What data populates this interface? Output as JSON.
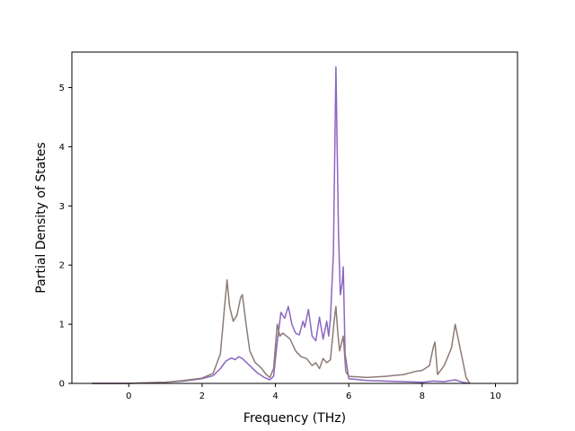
{
  "chart_data": {
    "type": "line",
    "title": "",
    "xlabel": "Frequency (THz)",
    "ylabel": "Partial Density of States",
    "xlim": [
      -1.55,
      10.6
    ],
    "ylim": [
      0,
      5.6
    ],
    "xticks": [
      0,
      2,
      4,
      6,
      8,
      10
    ],
    "yticks": [
      0,
      1,
      2,
      3,
      4,
      5
    ],
    "grid": false,
    "series": [
      {
        "color": "#8c67c0",
        "points": [
          [
            -1.0,
            0
          ],
          [
            0,
            0
          ],
          [
            0.5,
            0.01
          ],
          [
            1.0,
            0.02
          ],
          [
            1.5,
            0.04
          ],
          [
            2.0,
            0.08
          ],
          [
            2.3,
            0.13
          ],
          [
            2.5,
            0.25
          ],
          [
            2.65,
            0.38
          ],
          [
            2.8,
            0.43
          ],
          [
            2.9,
            0.4
          ],
          [
            3.0,
            0.45
          ],
          [
            3.1,
            0.42
          ],
          [
            3.3,
            0.3
          ],
          [
            3.5,
            0.18
          ],
          [
            3.7,
            0.1
          ],
          [
            3.85,
            0.06
          ],
          [
            3.95,
            0.12
          ],
          [
            4.05,
            0.7
          ],
          [
            4.15,
            1.2
          ],
          [
            4.25,
            1.1
          ],
          [
            4.35,
            1.3
          ],
          [
            4.45,
            1.0
          ],
          [
            4.55,
            0.85
          ],
          [
            4.65,
            0.82
          ],
          [
            4.75,
            1.05
          ],
          [
            4.8,
            0.95
          ],
          [
            4.9,
            1.25
          ],
          [
            5.0,
            0.8
          ],
          [
            5.1,
            0.72
          ],
          [
            5.2,
            1.12
          ],
          [
            5.3,
            0.75
          ],
          [
            5.4,
            1.05
          ],
          [
            5.45,
            0.8
          ],
          [
            5.5,
            1.1
          ],
          [
            5.58,
            2.2
          ],
          [
            5.65,
            5.35
          ],
          [
            5.72,
            2.5
          ],
          [
            5.77,
            1.5
          ],
          [
            5.82,
            1.7
          ],
          [
            5.85,
            1.97
          ],
          [
            5.9,
            0.5
          ],
          [
            6.0,
            0.08
          ],
          [
            6.5,
            0.05
          ],
          [
            7.0,
            0.04
          ],
          [
            7.5,
            0.03
          ],
          [
            8.0,
            0.02
          ],
          [
            8.3,
            0.04
          ],
          [
            8.6,
            0.03
          ],
          [
            8.9,
            0.06
          ],
          [
            9.1,
            0.02
          ],
          [
            9.3,
            0
          ]
        ]
      },
      {
        "color": "#8c7b76",
        "points": [
          [
            -1.0,
            0
          ],
          [
            0,
            0
          ],
          [
            0.5,
            0.01
          ],
          [
            1.0,
            0.02
          ],
          [
            1.5,
            0.05
          ],
          [
            2.0,
            0.09
          ],
          [
            2.3,
            0.17
          ],
          [
            2.5,
            0.5
          ],
          [
            2.6,
            1.2
          ],
          [
            2.68,
            1.75
          ],
          [
            2.75,
            1.3
          ],
          [
            2.85,
            1.05
          ],
          [
            2.95,
            1.15
          ],
          [
            3.05,
            1.45
          ],
          [
            3.1,
            1.5
          ],
          [
            3.2,
            1.0
          ],
          [
            3.3,
            0.55
          ],
          [
            3.45,
            0.35
          ],
          [
            3.6,
            0.27
          ],
          [
            3.75,
            0.15
          ],
          [
            3.85,
            0.1
          ],
          [
            3.95,
            0.25
          ],
          [
            4.05,
            1.0
          ],
          [
            4.12,
            0.8
          ],
          [
            4.2,
            0.85
          ],
          [
            4.3,
            0.8
          ],
          [
            4.4,
            0.75
          ],
          [
            4.55,
            0.55
          ],
          [
            4.7,
            0.45
          ],
          [
            4.85,
            0.42
          ],
          [
            5.0,
            0.3
          ],
          [
            5.1,
            0.35
          ],
          [
            5.2,
            0.25
          ],
          [
            5.3,
            0.42
          ],
          [
            5.4,
            0.35
          ],
          [
            5.5,
            0.4
          ],
          [
            5.6,
            1.05
          ],
          [
            5.65,
            1.3
          ],
          [
            5.7,
            0.85
          ],
          [
            5.75,
            0.55
          ],
          [
            5.85,
            0.8
          ],
          [
            5.92,
            0.2
          ],
          [
            6.0,
            0.12
          ],
          [
            6.5,
            0.1
          ],
          [
            7.0,
            0.12
          ],
          [
            7.5,
            0.15
          ],
          [
            7.8,
            0.2
          ],
          [
            8.0,
            0.22
          ],
          [
            8.2,
            0.3
          ],
          [
            8.3,
            0.6
          ],
          [
            8.35,
            0.7
          ],
          [
            8.42,
            0.15
          ],
          [
            8.6,
            0.3
          ],
          [
            8.8,
            0.6
          ],
          [
            8.9,
            1.0
          ],
          [
            9.0,
            0.7
          ],
          [
            9.1,
            0.4
          ],
          [
            9.2,
            0.1
          ],
          [
            9.3,
            0
          ]
        ]
      }
    ]
  }
}
